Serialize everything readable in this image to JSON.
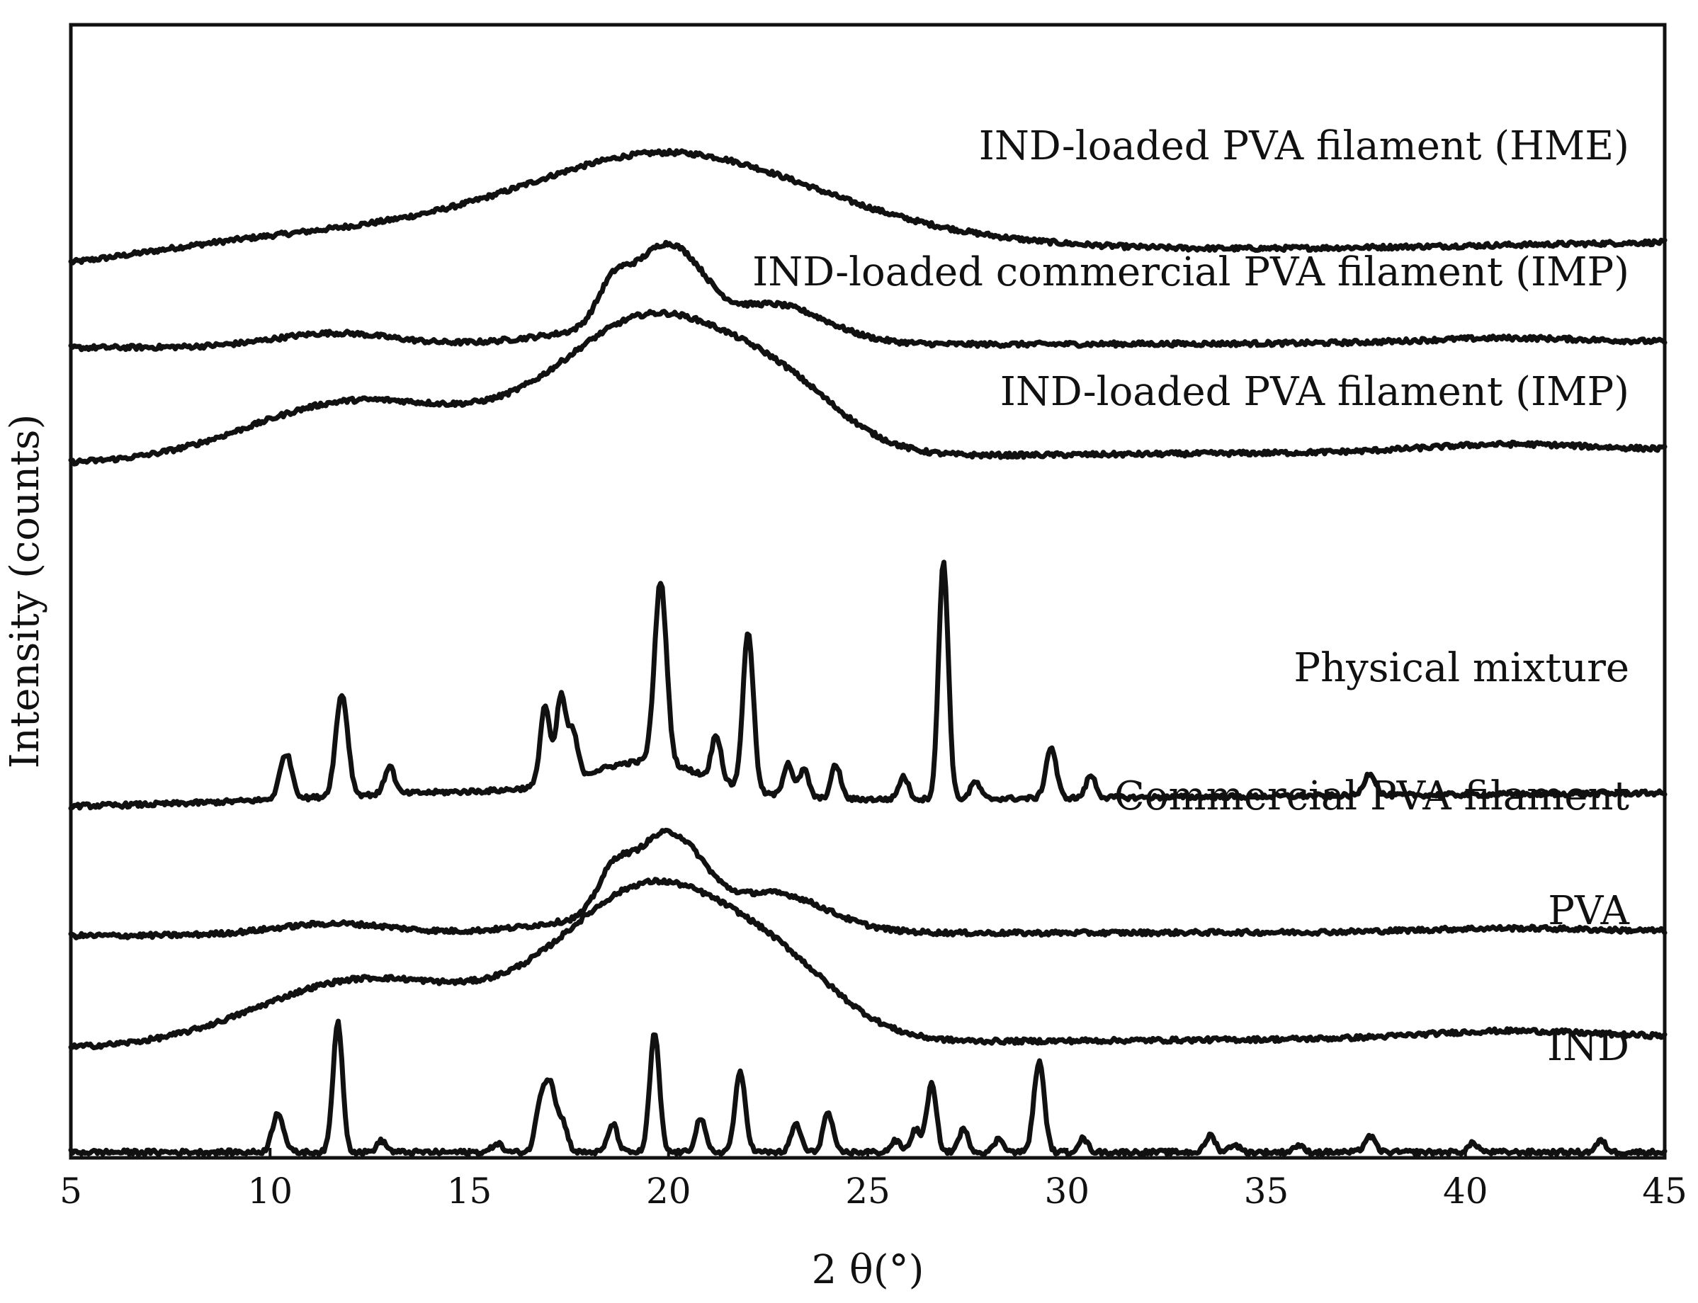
{
  "chart_data": {
    "type": "line",
    "title": "",
    "xlabel": "2 θ(°)",
    "ylabel": "Intensity (counts)",
    "xlim": [
      5,
      45
    ],
    "xticks": [
      "5",
      "10",
      "15",
      "20",
      "25",
      "30",
      "35",
      "40",
      "45"
    ],
    "y_ticks_shown": false,
    "grid": false,
    "legend": "inline labels at right",
    "series": [
      {
        "name": "IND-loaded PVA filament (HME)",
        "baseline": [
          [
            5,
            0.784
          ],
          [
            45,
            0.808
          ]
        ],
        "peaks": [
          [
            8,
            0.008,
            2.5
          ],
          [
            12.5,
            0.025,
            3.5
          ],
          [
            19.8,
            0.085,
            3.5
          ],
          [
            25,
            0.015,
            4
          ]
        ]
      },
      {
        "name": "IND-loaded commercial PVA filament (IMP)",
        "baseline": [
          [
            5,
            0.715
          ],
          [
            45,
            0.72
          ]
        ],
        "peaks": [
          [
            11.6,
            0.012,
            1.5
          ],
          [
            18.6,
            0.035,
            0.4
          ],
          [
            19.6,
            0.05,
            0.6
          ],
          [
            20.5,
            0.04,
            0.6
          ],
          [
            22.8,
            0.025,
            1.2
          ],
          [
            20,
            0.02,
            2.5
          ],
          [
            41,
            0.004,
            2
          ]
        ]
      },
      {
        "name": "IND-loaded PVA filament (IMP)",
        "baseline": [
          [
            5,
            0.613
          ],
          [
            45,
            0.625
          ]
        ],
        "peaks": [
          [
            11.8,
            0.045,
            2.5
          ],
          [
            19.7,
            0.115,
            2.2
          ],
          [
            23,
            0.04,
            1.5
          ],
          [
            16,
            0.02,
            3
          ],
          [
            41,
            0.006,
            2
          ]
        ]
      },
      {
        "name": "Physical mixture",
        "baseline": [
          [
            5,
            0.31
          ],
          [
            45,
            0.322
          ]
        ],
        "peaks": [
          [
            10.4,
            0.04,
            0.15
          ],
          [
            11.8,
            0.09,
            0.15
          ],
          [
            13,
            0.025,
            0.12
          ],
          [
            16.9,
            0.07,
            0.12
          ],
          [
            17.3,
            0.075,
            0.12
          ],
          [
            17.6,
            0.04,
            0.12
          ],
          [
            19.8,
            0.16,
            0.15
          ],
          [
            21.2,
            0.04,
            0.12
          ],
          [
            22,
            0.14,
            0.13
          ],
          [
            23,
            0.03,
            0.12
          ],
          [
            23.4,
            0.025,
            0.12
          ],
          [
            24.2,
            0.03,
            0.12
          ],
          [
            25.9,
            0.02,
            0.12
          ],
          [
            26.9,
            0.21,
            0.12
          ],
          [
            27.7,
            0.015,
            0.12
          ],
          [
            29.6,
            0.045,
            0.13
          ],
          [
            30.6,
            0.02,
            0.12
          ],
          [
            37.6,
            0.02,
            0.14
          ],
          [
            19.5,
            0.03,
            1.5
          ],
          [
            15,
            0.01,
            4
          ]
        ]
      },
      {
        "name": "Commercial PVA filament",
        "baseline": [
          [
            5,
            0.196
          ],
          [
            45,
            0.2
          ]
        ],
        "peaks": [
          [
            11.6,
            0.01,
            1.5
          ],
          [
            18.6,
            0.035,
            0.4
          ],
          [
            19.6,
            0.05,
            0.6
          ],
          [
            20.5,
            0.04,
            0.6
          ],
          [
            22.8,
            0.025,
            1.2
          ],
          [
            20,
            0.02,
            2.5
          ],
          [
            41,
            0.003,
            2
          ]
        ]
      },
      {
        "name": "PVA",
        "baseline": [
          [
            5,
            0.097
          ],
          [
            45,
            0.107
          ]
        ],
        "peaks": [
          [
            12,
            0.05,
            2.5
          ],
          [
            19.7,
            0.13,
            2.2
          ],
          [
            23,
            0.04,
            1.5
          ],
          [
            16,
            0.02,
            3
          ],
          [
            41,
            0.006,
            2
          ]
        ]
      },
      {
        "name": "IND",
        "baseline": [
          [
            5,
            0.005
          ],
          [
            45,
            0.005
          ]
        ],
        "peaks": [
          [
            10.2,
            0.035,
            0.14
          ],
          [
            11.7,
            0.115,
            0.12
          ],
          [
            12.8,
            0.01,
            0.12
          ],
          [
            15.7,
            0.008,
            0.12
          ],
          [
            16.8,
            0.045,
            0.13
          ],
          [
            17.05,
            0.055,
            0.13
          ],
          [
            17.35,
            0.025,
            0.12
          ],
          [
            18.6,
            0.025,
            0.12
          ],
          [
            19.65,
            0.105,
            0.12
          ],
          [
            20.8,
            0.03,
            0.12
          ],
          [
            21.8,
            0.07,
            0.13
          ],
          [
            23.2,
            0.025,
            0.12
          ],
          [
            24,
            0.035,
            0.12
          ],
          [
            25.7,
            0.01,
            0.12
          ],
          [
            26.2,
            0.02,
            0.12
          ],
          [
            26.6,
            0.06,
            0.12
          ],
          [
            27.4,
            0.02,
            0.12
          ],
          [
            28.3,
            0.012,
            0.12
          ],
          [
            29.3,
            0.08,
            0.13
          ],
          [
            30.4,
            0.012,
            0.12
          ],
          [
            33.6,
            0.015,
            0.12
          ],
          [
            34.2,
            0.007,
            0.12
          ],
          [
            35.8,
            0.006,
            0.12
          ],
          [
            37.6,
            0.014,
            0.13
          ],
          [
            40.2,
            0.008,
            0.12
          ],
          [
            43.4,
            0.01,
            0.12
          ]
        ]
      }
    ]
  }
}
